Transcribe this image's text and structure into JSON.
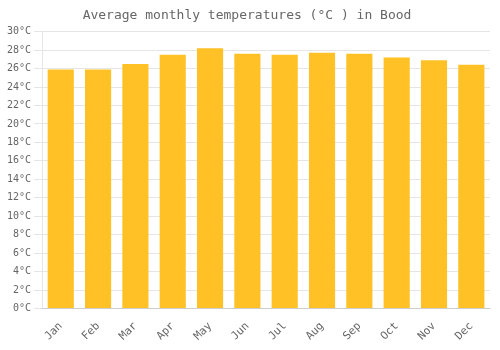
{
  "chart_data": {
    "type": "bar",
    "title": "Average monthly temperatures (°C ) in Bood",
    "categories": [
      "Jan",
      "Feb",
      "Mar",
      "Apr",
      "May",
      "Jun",
      "Jul",
      "Aug",
      "Sep",
      "Oct",
      "Nov",
      "Dec"
    ],
    "values": [
      25.9,
      25.9,
      26.5,
      27.5,
      28.2,
      27.6,
      27.5,
      27.7,
      27.6,
      27.2,
      26.9,
      26.4
    ],
    "color": "#FFC125",
    "ylim": [
      0,
      30
    ],
    "yticks": [
      {
        "value": 0,
        "label": "0°C"
      },
      {
        "value": 2,
        "label": "2°C"
      },
      {
        "value": 4,
        "label": "4°C"
      },
      {
        "value": 6,
        "label": "6°C"
      },
      {
        "value": 8,
        "label": "8°C"
      },
      {
        "value": 10,
        "label": "10°C"
      },
      {
        "value": 12,
        "label": "12°C"
      },
      {
        "value": 14,
        "label": "14°C"
      },
      {
        "value": 16,
        "label": "16°C"
      },
      {
        "value": 18,
        "label": "18°C"
      },
      {
        "value": 20,
        "label": "20°C"
      },
      {
        "value": 22,
        "label": "22°C"
      },
      {
        "value": 24,
        "label": "24°C"
      },
      {
        "value": 26,
        "label": "26°C"
      },
      {
        "value": 28,
        "label": "28°C"
      },
      {
        "value": 30,
        "label": "30°C"
      }
    ],
    "grid": true
  }
}
